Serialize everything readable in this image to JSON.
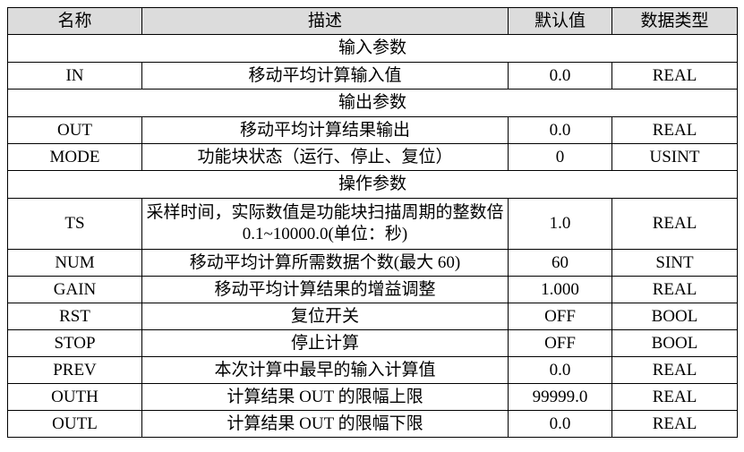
{
  "headers": [
    "名称",
    "描述",
    "默认值",
    "数据类型"
  ],
  "sections": [
    {
      "title": "输入参数",
      "rows": [
        [
          "IN",
          "移动平均计算输入值",
          "0.0",
          "REAL"
        ]
      ]
    },
    {
      "title": "输出参数",
      "rows": [
        [
          "OUT",
          "移动平均计算结果输出",
          "0.0",
          "REAL"
        ],
        [
          "MODE",
          "功能块状态（运行、停止、复位）",
          "0",
          "USINT"
        ]
      ]
    },
    {
      "title": "操作参数",
      "rows": [
        [
          "TS",
          "采样时间，实际数值是功能块扫描周期的整数倍 0.1~10000.0(单位：秒)",
          "1.0",
          "REAL"
        ],
        [
          "NUM",
          "移动平均计算所需数据个数(最大 60)",
          "60",
          "SINT"
        ],
        [
          "GAIN",
          "移动平均计算结果的增益调整",
          "1.000",
          "REAL"
        ],
        [
          "RST",
          "复位开关",
          "OFF",
          "BOOL"
        ],
        [
          "STOP",
          "停止计算",
          "OFF",
          "BOOL"
        ],
        [
          "PREV",
          "本次计算中最早的输入计算值",
          "0.0",
          "REAL"
        ],
        [
          "OUTH",
          "计算结果 OUT 的限幅上限",
          "99999.0",
          "REAL"
        ],
        [
          "OUTL",
          "计算结果 OUT 的限幅下限",
          "0.0",
          "REAL"
        ]
      ]
    }
  ]
}
